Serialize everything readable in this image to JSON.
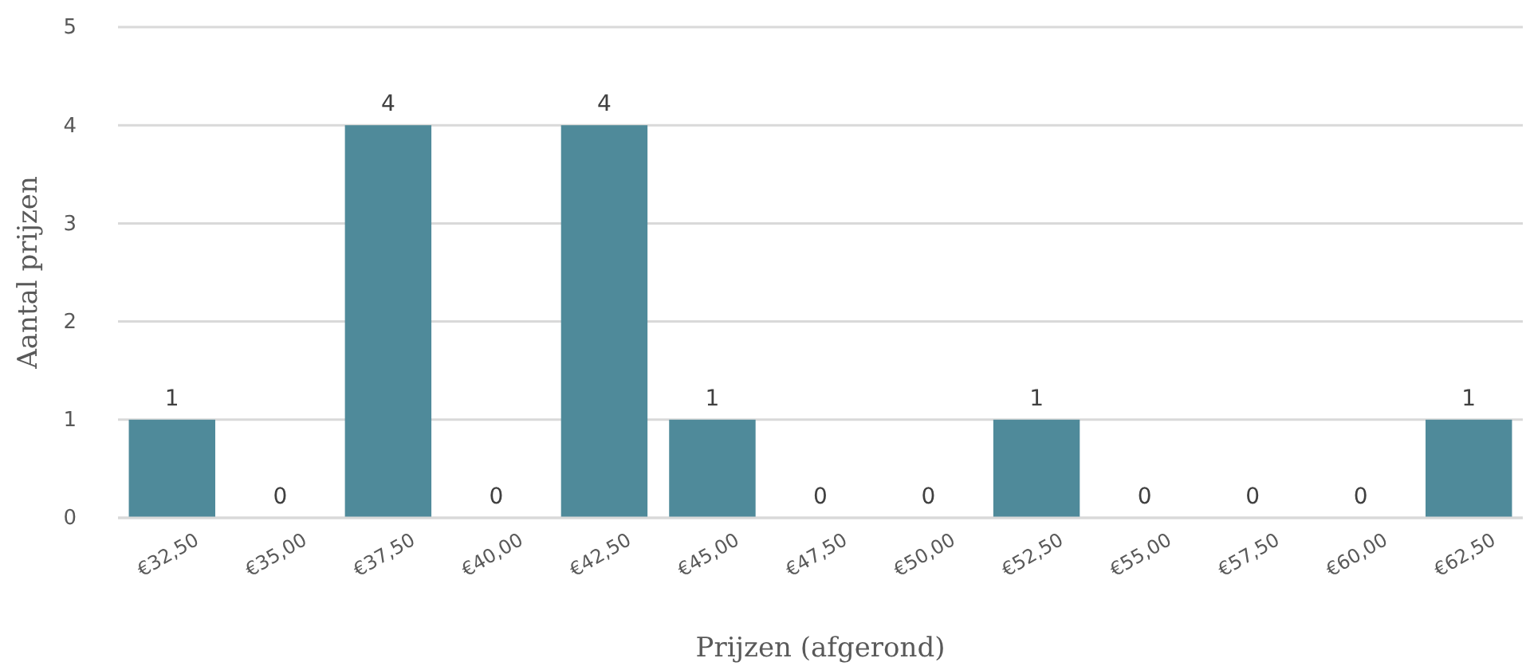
{
  "chart_data": {
    "type": "bar",
    "xlabel": "Prijzen (afgerond)",
    "ylabel": "Aantal prijzen",
    "categories": [
      "€32,50",
      "€35,00",
      "€37,50",
      "€40,00",
      "€42,50",
      "€45,00",
      "€47,50",
      "€50,00",
      "€52,50",
      "€55,00",
      "€57,50",
      "€60,00",
      "€62,50"
    ],
    "values": [
      1,
      0,
      4,
      0,
      4,
      1,
      0,
      0,
      1,
      0,
      0,
      0,
      1
    ],
    "color": "#4f8a9a",
    "ylim": [
      0,
      5
    ],
    "yticks": [
      0,
      1,
      2,
      3,
      4,
      5
    ],
    "grid": "y",
    "data_labels": true
  }
}
